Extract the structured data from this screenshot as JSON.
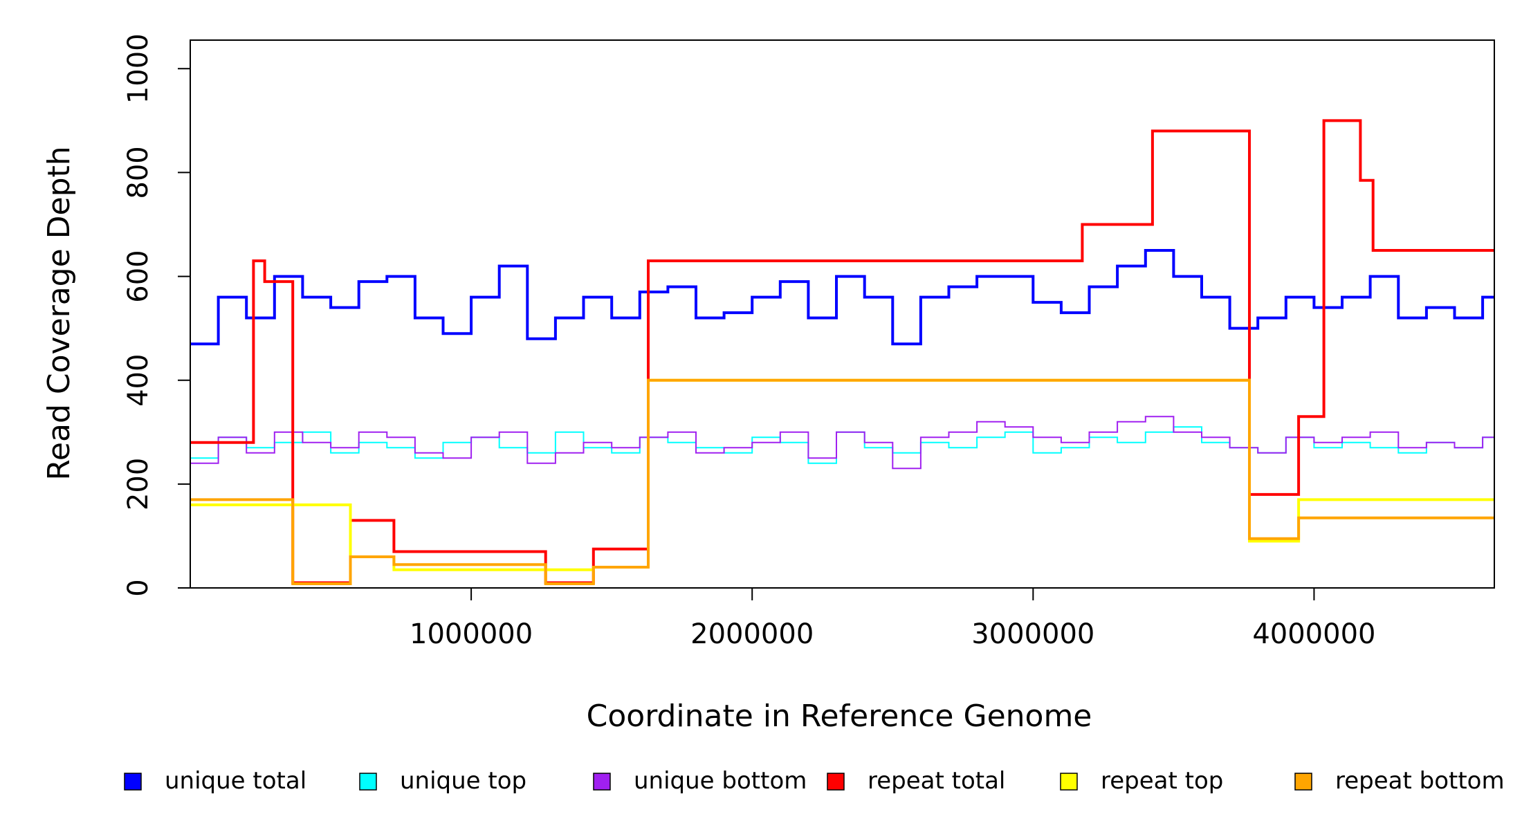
{
  "chart_data": {
    "type": "line",
    "title": "",
    "xlabel": "Coordinate in Reference Genome",
    "ylabel": "Read Coverage Depth",
    "xlim": [
      1,
      4641652
    ],
    "ylim": [
      0,
      1055
    ],
    "x_ticks": [
      1000000,
      2000000,
      3000000,
      4000000
    ],
    "x_tick_labels": [
      "1000000",
      "2000000",
      "3000000",
      "4000000"
    ],
    "y_ticks": [
      0,
      200,
      400,
      600,
      800,
      1000
    ],
    "y_tick_labels": [
      "0",
      "200",
      "400",
      "600",
      "800",
      "1000"
    ],
    "grid": false,
    "legend_position": "bottom",
    "line_style": "step",
    "series": [
      {
        "name": "unique total",
        "color": "#0000ff",
        "x": [
          0,
          100000,
          200000,
          300000,
          400000,
          500000,
          600000,
          700000,
          800000,
          900000,
          1000000,
          1100000,
          1200000,
          1300000,
          1400000,
          1500000,
          1600000,
          1700000,
          1800000,
          1900000,
          2000000,
          2100000,
          2200000,
          2300000,
          2400000,
          2500000,
          2600000,
          2700000,
          2800000,
          2900000,
          3000000,
          3100000,
          3200000,
          3300000,
          3400000,
          3500000,
          3600000,
          3700000,
          3800000,
          3900000,
          4000000,
          4100000,
          4200000,
          4300000,
          4400000,
          4500000,
          4600000
        ],
        "values": [
          470,
          560,
          520,
          600,
          560,
          540,
          590,
          600,
          520,
          490,
          560,
          620,
          480,
          520,
          560,
          520,
          570,
          580,
          520,
          530,
          560,
          590,
          520,
          600,
          560,
          470,
          560,
          580,
          600,
          600,
          550,
          530,
          580,
          620,
          650,
          600,
          560,
          500,
          520,
          560,
          540,
          560,
          600,
          520,
          540,
          520,
          560
        ]
      },
      {
        "name": "unique top",
        "color": "#00ffff",
        "x": [
          0,
          100000,
          200000,
          300000,
          400000,
          500000,
          600000,
          700000,
          800000,
          900000,
          1000000,
          1100000,
          1200000,
          1300000,
          1400000,
          1500000,
          1600000,
          1700000,
          1800000,
          1900000,
          2000000,
          2100000,
          2200000,
          2300000,
          2400000,
          2500000,
          2600000,
          2700000,
          2800000,
          2900000,
          3000000,
          3100000,
          3200000,
          3300000,
          3400000,
          3500000,
          3600000,
          3700000,
          3800000,
          3900000,
          4000000,
          4100000,
          4200000,
          4300000,
          4400000,
          4500000,
          4600000
        ],
        "values": [
          250,
          290,
          270,
          280,
          300,
          260,
          280,
          270,
          250,
          280,
          290,
          270,
          260,
          300,
          270,
          260,
          290,
          280,
          270,
          260,
          290,
          280,
          240,
          300,
          270,
          260,
          280,
          270,
          290,
          300,
          260,
          270,
          290,
          280,
          300,
          310,
          280,
          270,
          260,
          290,
          270,
          280,
          270,
          260,
          280,
          270,
          290
        ]
      },
      {
        "name": "unique bottom",
        "color": "#a020f0",
        "x": [
          0,
          100000,
          200000,
          300000,
          400000,
          500000,
          600000,
          700000,
          800000,
          900000,
          1000000,
          1100000,
          1200000,
          1300000,
          1400000,
          1500000,
          1600000,
          1700000,
          1800000,
          1900000,
          2000000,
          2100000,
          2200000,
          2300000,
          2400000,
          2500000,
          2600000,
          2700000,
          2800000,
          2900000,
          3000000,
          3100000,
          3200000,
          3300000,
          3400000,
          3500000,
          3600000,
          3700000,
          3800000,
          3900000,
          4000000,
          4100000,
          4200000,
          4300000,
          4400000,
          4500000,
          4600000
        ],
        "values": [
          240,
          290,
          260,
          300,
          280,
          270,
          300,
          290,
          260,
          250,
          290,
          300,
          240,
          260,
          280,
          270,
          290,
          300,
          260,
          270,
          280,
          300,
          250,
          300,
          280,
          230,
          290,
          300,
          320,
          310,
          290,
          280,
          300,
          320,
          330,
          300,
          290,
          270,
          260,
          290,
          280,
          290,
          300,
          270,
          280,
          270,
          290
        ]
      },
      {
        "name": "repeat total",
        "color": "#ff0000",
        "x": [
          0,
          225000,
          265000,
          365000,
          570000,
          725000,
          1265000,
          1435000,
          1630000,
          3175000,
          3425000,
          3770000,
          3945000,
          4035000,
          4165000,
          4210000
        ],
        "values": [
          280,
          630,
          590,
          10,
          130,
          70,
          10,
          75,
          630,
          700,
          880,
          180,
          330,
          900,
          785,
          650
        ]
      },
      {
        "name": "repeat top",
        "color": "#ffff00",
        "x": [
          0,
          570000,
          725000,
          1435000,
          1630000,
          3770000,
          3945000
        ],
        "values": [
          160,
          60,
          35,
          40,
          400,
          90,
          170
        ]
      },
      {
        "name": "repeat bottom",
        "color": "#ffa500",
        "x": [
          0,
          365000,
          570000,
          725000,
          1265000,
          1435000,
          1630000,
          3770000,
          3945000
        ],
        "values": [
          170,
          8,
          60,
          45,
          8,
          40,
          400,
          95,
          135
        ]
      }
    ]
  }
}
